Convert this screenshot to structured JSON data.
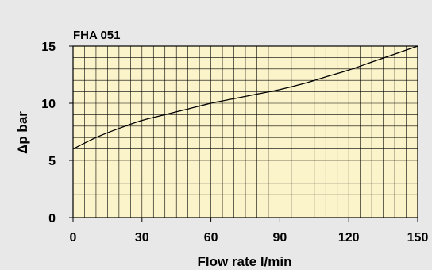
{
  "chart_data": {
    "type": "line",
    "title": "FHA 051",
    "xlabel": "Flow rate l/min",
    "ylabel": "Δp bar",
    "xlim": [
      0,
      150
    ],
    "ylim": [
      0,
      15
    ],
    "x_ticks": [
      "0",
      "30",
      "60",
      "90",
      "120",
      "150"
    ],
    "y_ticks": [
      "0",
      "5",
      "10",
      "15"
    ],
    "grid": true,
    "legend": "none",
    "series": [
      {
        "x": [
          0,
          10,
          20,
          30,
          40,
          50,
          60,
          70,
          80,
          90,
          100,
          110,
          120,
          130,
          140,
          150
        ],
        "y": [
          6.0,
          7.0,
          7.8,
          8.5,
          9.0,
          9.5,
          10.0,
          10.4,
          10.8,
          11.2,
          11.7,
          12.3,
          12.9,
          13.6,
          14.3,
          15.0
        ]
      }
    ]
  },
  "colors": {
    "background": "#e8e8e8",
    "plot_fill": "#fbf3c9",
    "grid": "#000000",
    "line": "#000000"
  }
}
